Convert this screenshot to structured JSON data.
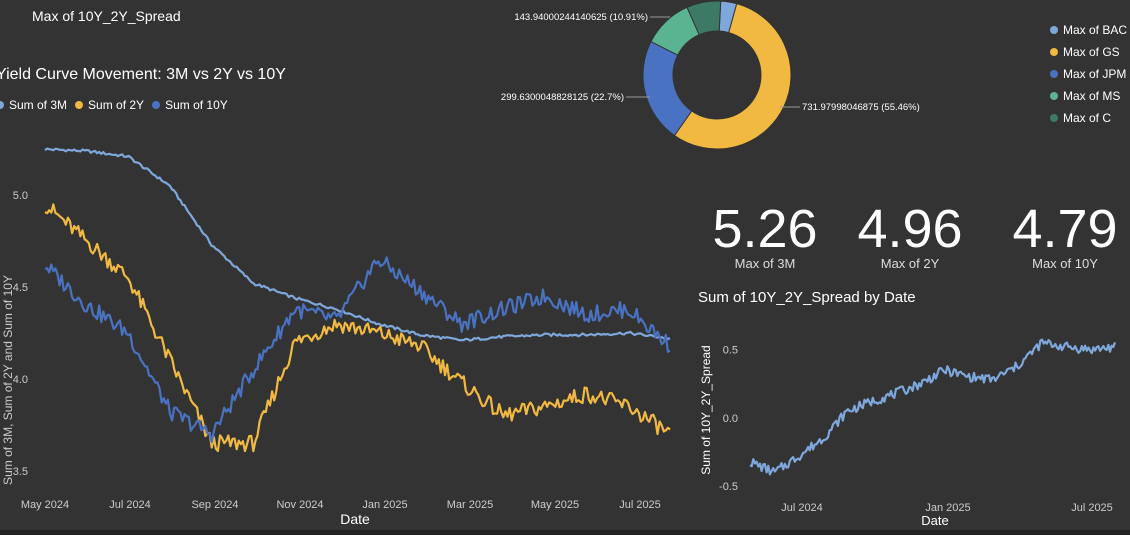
{
  "card_title": "Max of 10Y_2Y_Spread",
  "line_chart": {
    "title": "Yield Curve Movement: 3M vs 2Y vs 10Y",
    "legend": [
      "Sum of 3M",
      "Sum of 2Y",
      "Sum of 10Y"
    ],
    "ylabel": "Sum of 3M, Sum of 2Y and Sum of 10Y",
    "xlabel": "Date"
  },
  "spread_chart": {
    "title": "Sum of 10Y_2Y_Spread by Date",
    "ylabel": "Sum of 10Y_2Y_Spread",
    "xlabel": "Date"
  },
  "kpis": [
    {
      "value": "5.26",
      "label": "Max of 3M"
    },
    {
      "value": "4.96",
      "label": "Max of 2Y"
    },
    {
      "value": "4.79",
      "label": "Max of 10Y"
    }
  ],
  "colors": {
    "background": "#333333",
    "light_blue": "#7ea7dc",
    "gold": "#f2b942",
    "blue": "#4a72c2",
    "green": "#5bb491",
    "dark_green": "#3d7a65",
    "axis_text": "#cccccc"
  },
  "chart_data": [
    {
      "type": "line",
      "title": "Yield Curve Movement: 3M vs 2Y vs 10Y",
      "xlabel": "Date",
      "ylabel": "Sum of 3M, Sum of 2Y and Sum of 10Y",
      "x_ticks": [
        "May 2024",
        "Jul 2024",
        "Sep 2024",
        "Nov 2024",
        "Jan 2025",
        "Mar 2025",
        "May 2025",
        "Jul 2025"
      ],
      "y_ticks": [
        "3.5",
        "4.0",
        "4.5",
        "5.0"
      ],
      "ylim": [
        3.45,
        5.3
      ],
      "x": [
        "2024-05",
        "2024-06",
        "2024-07",
        "2024-08",
        "2024-09",
        "2024-10",
        "2024-11",
        "2024-12",
        "2025-01",
        "2025-02",
        "2025-03",
        "2025-04",
        "2025-05",
        "2025-06",
        "2025-07",
        "2025-08"
      ],
      "series": [
        {
          "name": "Sum of 3M",
          "values": [
            5.25,
            5.24,
            5.21,
            5.05,
            4.73,
            4.52,
            4.44,
            4.38,
            4.3,
            4.24,
            4.21,
            4.23,
            4.24,
            4.24,
            4.25,
            4.22
          ]
        },
        {
          "name": "Sum of 2Y",
          "values": [
            4.95,
            4.75,
            4.55,
            4.1,
            3.65,
            3.65,
            4.2,
            4.3,
            4.25,
            4.18,
            3.98,
            3.8,
            3.85,
            3.92,
            3.85,
            3.7
          ]
        },
        {
          "name": "Sum of 10Y",
          "values": [
            4.62,
            4.4,
            4.25,
            3.82,
            3.7,
            4.05,
            4.38,
            4.32,
            4.65,
            4.48,
            4.3,
            4.38,
            4.45,
            4.35,
            4.38,
            4.18
          ]
        }
      ],
      "legend_position": "top-left"
    },
    {
      "type": "pie",
      "title": "",
      "labels": [
        "Max of BAC",
        "Max of GS",
        "Max of JPM",
        "Max of MS",
        "Max of C"
      ],
      "values": [
        3.5,
        55.46,
        22.7,
        10.91,
        7.43
      ],
      "data_labels": [
        "",
        "731.97998046875 (55.46%)",
        "299.6300048828125 (22.7%)",
        "143.94000244140625 (10.91%)",
        ""
      ],
      "legend_position": "right"
    },
    {
      "type": "line",
      "title": "Sum of 10Y_2Y_Spread by Date",
      "xlabel": "Date",
      "ylabel": "Sum of 10Y_2Y_Spread",
      "x_ticks": [
        "Jul 2024",
        "Jan 2025",
        "Jul 2025"
      ],
      "y_ticks": [
        "-0.5",
        "0.0",
        "0.5"
      ],
      "ylim": [
        -0.55,
        0.68
      ],
      "x": [
        "2024-05",
        "2024-06",
        "2024-07",
        "2024-08",
        "2024-09",
        "2024-10",
        "2024-11",
        "2024-12",
        "2025-01",
        "2025-02",
        "2025-03",
        "2025-04",
        "2025-05",
        "2025-06",
        "2025-07",
        "2025-08"
      ],
      "series": [
        {
          "name": "Sum of 10Y_2Y_Spread",
          "values": [
            -0.32,
            -0.4,
            -0.28,
            -0.15,
            0.05,
            0.12,
            0.18,
            0.25,
            0.35,
            0.3,
            0.28,
            0.38,
            0.55,
            0.52,
            0.5,
            0.52
          ]
        }
      ]
    }
  ]
}
